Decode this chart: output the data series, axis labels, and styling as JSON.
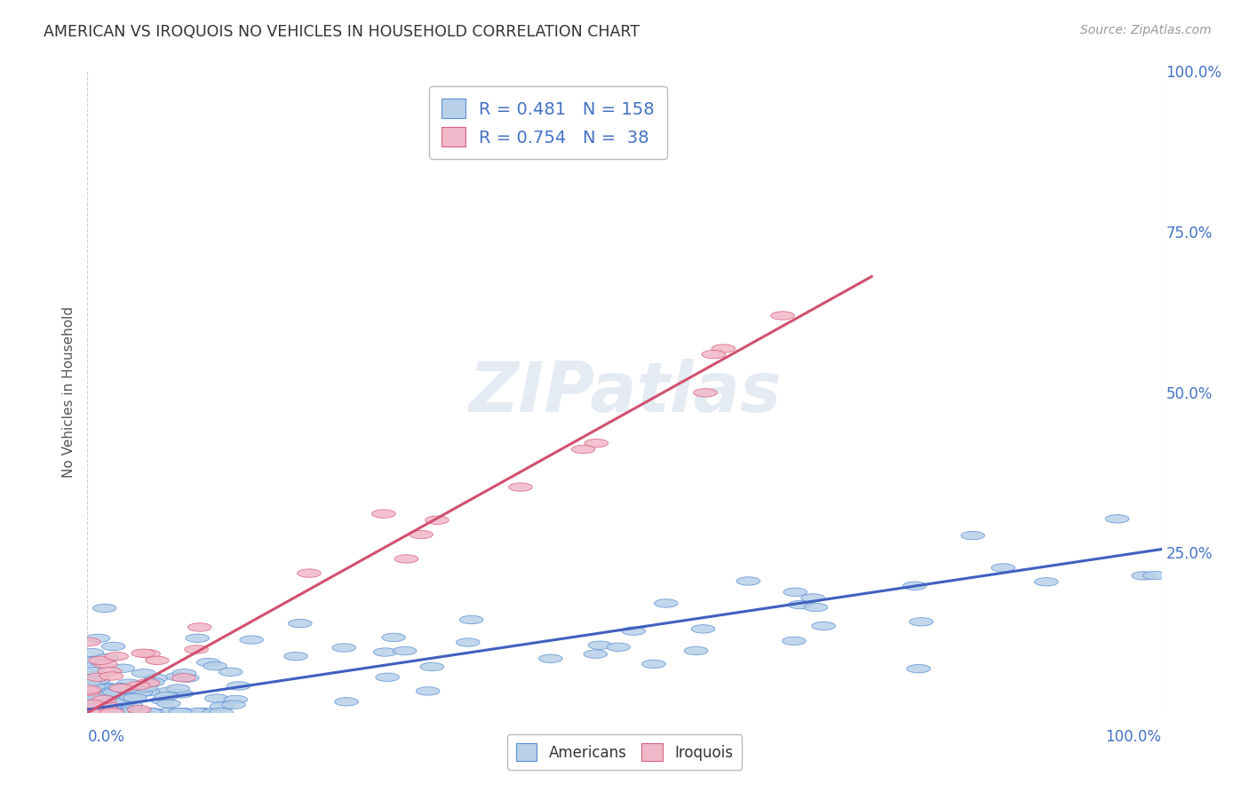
{
  "title": "AMERICAN VS IROQUOIS NO VEHICLES IN HOUSEHOLD CORRELATION CHART",
  "source": "Source: ZipAtlas.com",
  "ylabel": "No Vehicles in Household",
  "watermark": "ZIPatlas",
  "xlim": [
    0,
    1.0
  ],
  "ylim": [
    0,
    1.0
  ],
  "xtick_labels_outer": [
    "0.0%",
    "100.0%"
  ],
  "xtick_positions_outer": [
    0,
    1.0
  ],
  "ytick_labels_right": [
    "25.0%",
    "50.0%",
    "75.0%",
    "100.0%"
  ],
  "ytick_positions_right": [
    0.25,
    0.5,
    0.75,
    1.0
  ],
  "legend_R_american": "0.481",
  "legend_N_american": "158",
  "legend_R_iroquois": "0.754",
  "legend_N_iroquois": "38",
  "color_american_face": "#b8d0e8",
  "color_american_edge": "#5b8fd4",
  "color_iroquois_face": "#f0b8c8",
  "color_iroquois_edge": "#d86080",
  "color_american_line": "#4060c0",
  "color_iroquois_line": "#d05070",
  "color_label_blue": "#4472c4",
  "background_color": "#ffffff",
  "grid_color": "#cccccc",
  "am_line_x0": 0.0,
  "am_line_y0": 0.005,
  "am_line_x1": 1.0,
  "am_line_y1": 0.255,
  "iro_line_x0": 0.0,
  "iro_line_y0": 0.0,
  "iro_line_x1": 0.73,
  "iro_line_y1": 0.68
}
